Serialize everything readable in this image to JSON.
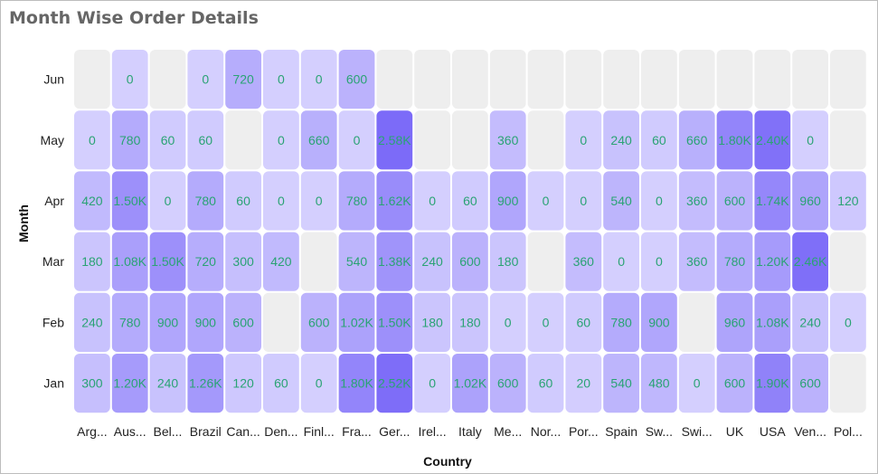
{
  "chart_data": {
    "type": "heatmap",
    "title": "Month Wise Order Details",
    "xlabel": "Country",
    "ylabel": "Month",
    "x_categories": [
      "Arg...",
      "Aus...",
      "Bel...",
      "Brazil",
      "Can...",
      "Den...",
      "Finl...",
      "Fra...",
      "Ger...",
      "Irel...",
      "Italy",
      "Me...",
      "Nor...",
      "Por...",
      "Spain",
      "Sw...",
      "Swi...",
      "UK",
      "USA",
      "Ven...",
      "Pol..."
    ],
    "y_categories": [
      "Jun",
      "May",
      "Apr",
      "Mar",
      "Feb",
      "Jan"
    ],
    "values": [
      [
        null,
        0,
        null,
        0,
        720,
        0,
        0,
        600,
        null,
        null,
        null,
        null,
        null,
        null,
        null,
        null,
        null,
        null,
        null,
        null,
        null
      ],
      [
        0,
        780,
        60,
        60,
        null,
        0,
        660,
        0,
        2580,
        null,
        null,
        360,
        null,
        0,
        240,
        60,
        660,
        1800,
        2400,
        0,
        null
      ],
      [
        420,
        1500,
        0,
        780,
        60,
        0,
        0,
        780,
        1620,
        0,
        60,
        900,
        0,
        0,
        540,
        0,
        360,
        600,
        1740,
        960,
        120
      ],
      [
        180,
        1080,
        1500,
        720,
        300,
        420,
        null,
        540,
        1380,
        240,
        600,
        180,
        null,
        360,
        0,
        0,
        360,
        780,
        1200,
        2460,
        null
      ],
      [
        240,
        780,
        900,
        900,
        600,
        null,
        600,
        1020,
        1500,
        180,
        180,
        0,
        0,
        60,
        780,
        900,
        null,
        960,
        1080,
        240,
        0
      ],
      [
        300,
        1200,
        240,
        1260,
        120,
        60,
        0,
        1800,
        2520,
        0,
        1020,
        600,
        60,
        20,
        540,
        480,
        0,
        600,
        1900,
        600,
        null
      ]
    ],
    "labels": [
      [
        null,
        "0",
        null,
        "0",
        "720",
        "0",
        "0",
        "600",
        null,
        null,
        null,
        null,
        null,
        null,
        null,
        null,
        null,
        null,
        null,
        null,
        null
      ],
      [
        "0",
        "780",
        "60",
        "60",
        null,
        "0",
        "660",
        "0",
        "2.58K",
        null,
        null,
        "360",
        null,
        "0",
        "240",
        "60",
        "660",
        "1.80K",
        "2.40K",
        "0",
        null
      ],
      [
        "420",
        "1.50K",
        "0",
        "780",
        "60",
        "0",
        "0",
        "780",
        "1.62K",
        "0",
        "60",
        "900",
        "0",
        "0",
        "540",
        "0",
        "360",
        "600",
        "1.74K",
        "960",
        "120"
      ],
      [
        "180",
        "1.08K",
        "1.50K",
        "720",
        "300",
        "420",
        null,
        "540",
        "1.38K",
        "240",
        "600",
        "180",
        null,
        "360",
        "0",
        "0",
        "360",
        "780",
        "1.20K",
        "2.46K",
        null
      ],
      [
        "240",
        "780",
        "900",
        "900",
        "600",
        null,
        "600",
        "1.02K",
        "1.50K",
        "180",
        "180",
        "0",
        "0",
        "60",
        "780",
        "900",
        null,
        "960",
        "1.08K",
        "240",
        "0"
      ],
      [
        "300",
        "1.20K",
        "240",
        "1.26K",
        "120",
        "60",
        "0",
        "1.80K",
        "2.52K",
        "0",
        "1.02K",
        "600",
        "60",
        "20",
        "540",
        "480",
        "0",
        "600",
        "1.90K",
        "600",
        null
      ]
    ],
    "colors": {
      "min": "#d4cffe",
      "max": "#7c6bf8",
      "empty": "#eeeeee",
      "label": "#2aa374"
    }
  }
}
